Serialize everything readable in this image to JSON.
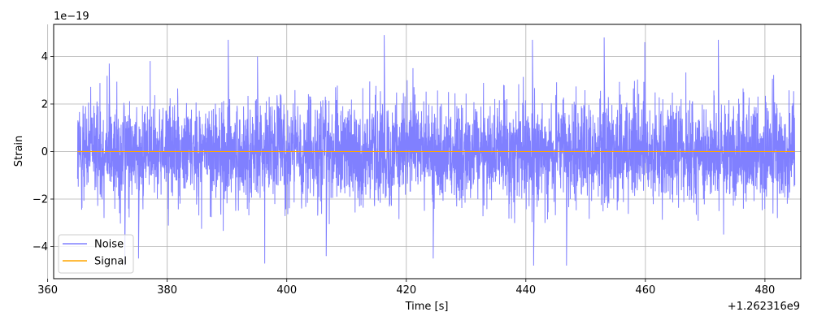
{
  "chart_data": {
    "type": "line",
    "title": "",
    "xlabel": "Time [s]",
    "ylabel": "Strain",
    "x_offset_label": "+1.262316e9",
    "y_scale_label": "1e−19",
    "xlim": [
      361,
      486
    ],
    "ylim": [
      -5.35,
      5.35
    ],
    "xticks": [
      360,
      380,
      400,
      420,
      440,
      460,
      480
    ],
    "xtick_labels": [
      "360",
      "380",
      "400",
      "420",
      "440",
      "460",
      "480"
    ],
    "yticks": [
      -4,
      -2,
      0,
      2,
      4
    ],
    "ytick_labels": [
      "−4",
      "−2",
      "0",
      "2",
      "4"
    ],
    "grid": true,
    "legend_position": "lower-left",
    "series": [
      {
        "name": "Noise",
        "color": "#8080ff",
        "x_range": [
          365,
          485
        ],
        "typical_amplitude": 2.0,
        "peak_amplitude": 4.9,
        "description_peaks": [
          {
            "x": 370.3,
            "y": 3.7
          },
          {
            "x": 372.9,
            "y": -4.8
          },
          {
            "x": 375.2,
            "y": -4.5
          },
          {
            "x": 390.2,
            "y": 4.7
          },
          {
            "x": 395.1,
            "y": 4.0
          },
          {
            "x": 406.6,
            "y": -4.4
          },
          {
            "x": 416.3,
            "y": 4.9
          },
          {
            "x": 424.5,
            "y": -4.5
          },
          {
            "x": 441.1,
            "y": 4.7
          },
          {
            "x": 441.3,
            "y": -4.8
          },
          {
            "x": 446.8,
            "y": -4.8
          },
          {
            "x": 453.1,
            "y": 4.8
          },
          {
            "x": 459.9,
            "y": 4.6
          },
          {
            "x": 472.2,
            "y": 4.7
          }
        ]
      },
      {
        "name": "Signal",
        "color": "#ffa500",
        "x": [
          365,
          485
        ],
        "y": [
          0,
          0
        ]
      }
    ]
  }
}
